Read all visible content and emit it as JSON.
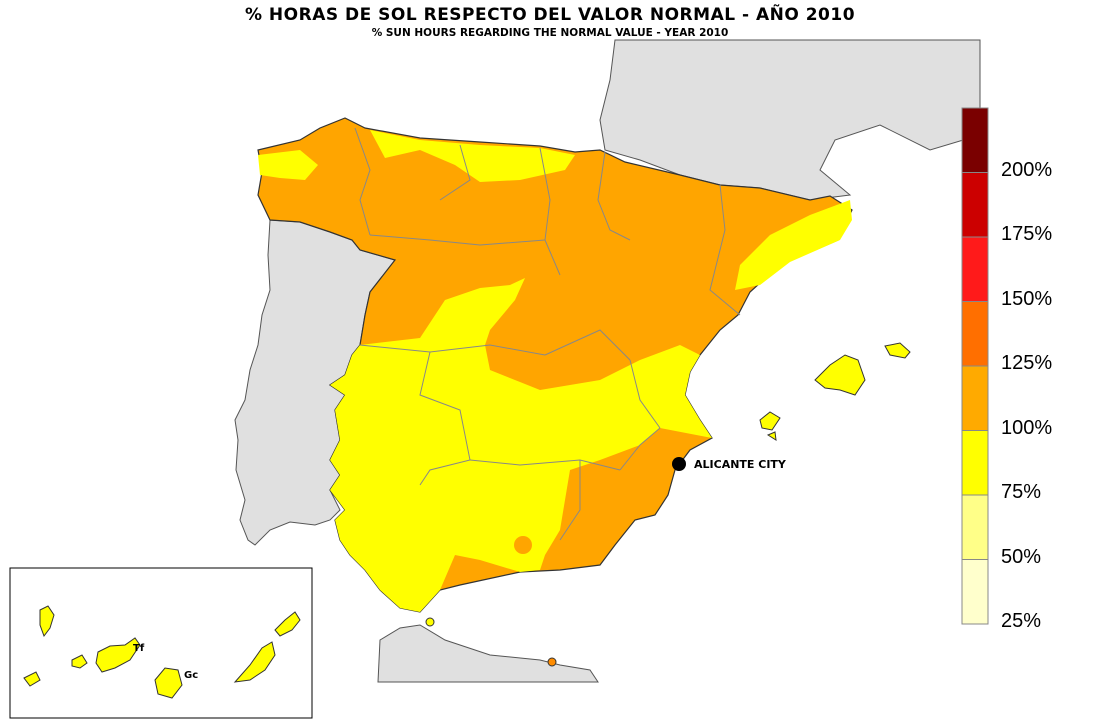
{
  "title": "% HORAS DE SOL RESPECTO DEL VALOR NORMAL -  AÑO  2010",
  "subtitle": "% SUN HOURS REGARDING THE NORMAL VALUE - YEAR 2010",
  "city": {
    "label": "ALICANTE CITY"
  },
  "islands": {
    "tenerife": "Tf",
    "gran_canaria": "Gc"
  },
  "legend": {
    "labels": [
      "200%",
      "175%",
      "150%",
      "125%",
      "100%",
      "75%",
      "50%",
      "25%"
    ],
    "colors": [
      "#7a0000",
      "#cc0000",
      "#ff1a1a",
      "#ff6f00",
      "#ffaa00",
      "#ffff00",
      "#ffff88",
      "#ffffcc"
    ]
  },
  "colors": {
    "band_75_100": "#ffff00",
    "band_100_125": "#ffa500",
    "land_other": "#e0e0e0"
  }
}
